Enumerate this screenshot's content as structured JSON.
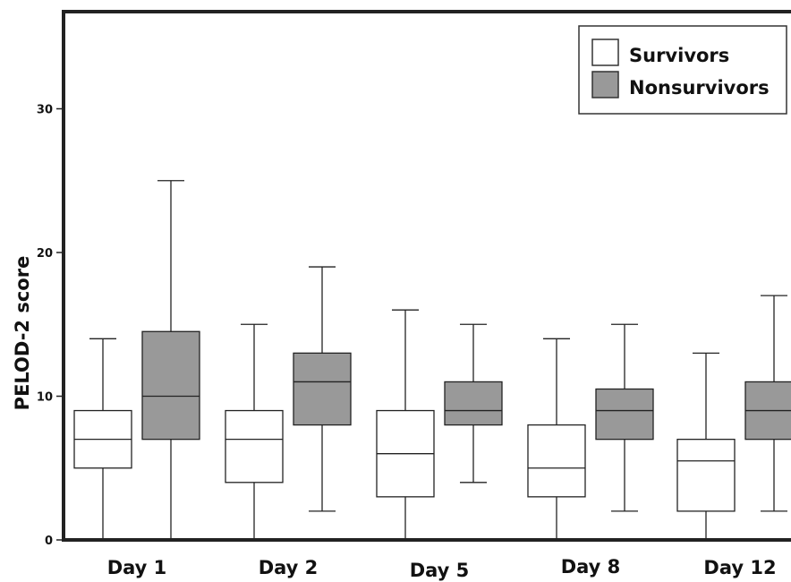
{
  "chart_data": {
    "type": "boxplot",
    "ylabel": "PELOD-2 score",
    "ylim": [
      0,
      36
    ],
    "yticks": [
      0,
      10,
      20,
      30
    ],
    "categories": [
      "Day 1",
      "Day 2",
      "Day 5",
      "Day 8",
      "Day 12"
    ],
    "legend": {
      "position": "top-right",
      "entries": [
        {
          "name": "Survivors",
          "color": "#ffffff"
        },
        {
          "name": "Nonsurvivors",
          "color": "#999999"
        }
      ]
    },
    "series": [
      {
        "name": "Survivors",
        "color": "#ffffff",
        "boxes": [
          {
            "min": 0,
            "q1": 5,
            "median": 7,
            "q3": 9,
            "max": 14
          },
          {
            "min": 0,
            "q1": 4,
            "median": 7,
            "q3": 9,
            "max": 15
          },
          {
            "min": 0,
            "q1": 3,
            "median": 6,
            "q3": 9,
            "max": 16
          },
          {
            "min": 0,
            "q1": 3,
            "median": 5,
            "q3": 8,
            "max": 14
          },
          {
            "min": 0,
            "q1": 2,
            "median": 5.5,
            "q3": 7,
            "max": 13
          }
        ]
      },
      {
        "name": "Nonsurvivors",
        "color": "#999999",
        "boxes": [
          {
            "min": 0,
            "q1": 7,
            "median": 10,
            "q3": 14.5,
            "max": 25
          },
          {
            "min": 2,
            "q1": 8,
            "median": 11,
            "q3": 13,
            "max": 19
          },
          {
            "min": 4,
            "q1": 8,
            "median": 9,
            "q3": 11,
            "max": 15
          },
          {
            "min": 2,
            "q1": 7,
            "median": 9,
            "q3": 10.5,
            "max": 15
          },
          {
            "min": 2,
            "q1": 7,
            "median": 9,
            "q3": 11,
            "max": 17
          }
        ]
      }
    ]
  }
}
